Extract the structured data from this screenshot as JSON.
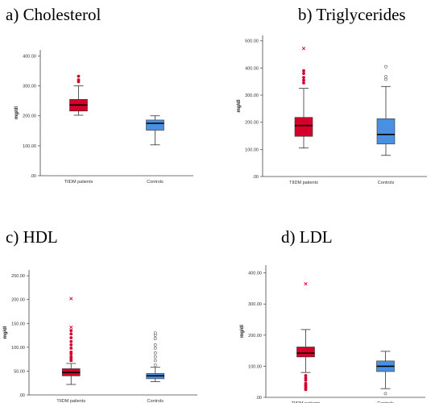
{
  "colors": {
    "patients": "#d4002a",
    "controls": "#4a90e2",
    "axis": "#444444",
    "median": "#000000"
  },
  "chart_data": [
    {
      "type": "box",
      "panel_label": "a) Cholesterol",
      "ylabel": "mg/dl",
      "ylim": [
        0,
        420
      ],
      "yticks": [
        0,
        100,
        200,
        300,
        400
      ],
      "ytick_labels": [
        ".00",
        "100.00",
        "200.00",
        "300.00",
        "400.00"
      ],
      "categories": [
        "TIIDM patients",
        "Controls"
      ],
      "boxes": [
        {
          "name": "TIIDM patients",
          "whisker_low": 202,
          "q1": 216,
          "median": 236,
          "q3": 255,
          "whisker_high": 300,
          "outliers": [
            314,
            320,
            332
          ],
          "extremes": []
        },
        {
          "name": "Controls",
          "whisker_low": 103,
          "q1": 152,
          "median": 175,
          "q3": 186,
          "whisker_high": 200,
          "outliers": [],
          "extremes": []
        }
      ]
    },
    {
      "type": "box",
      "panel_label": "b) Triglycerides",
      "ylabel": "mg/dl",
      "ylim": [
        0,
        520
      ],
      "yticks": [
        0,
        100,
        200,
        300,
        400,
        500
      ],
      "ytick_labels": [
        ".00",
        "100.00",
        "200.00",
        "300.00",
        "400.00",
        "500.00"
      ],
      "categories": [
        "TIIDM patients",
        "Controls"
      ],
      "boxes": [
        {
          "name": "TIIDM patients",
          "whisker_low": 105,
          "q1": 148,
          "median": 188,
          "q3": 218,
          "whisker_high": 325,
          "outliers": [
            345,
            355,
            365,
            380,
            390
          ],
          "extremes": [
            472
          ]
        },
        {
          "name": "Controls",
          "whisker_low": 78,
          "q1": 120,
          "median": 155,
          "q3": 213,
          "whisker_high": 332,
          "outliers": [
            358,
            368,
            405
          ],
          "extremes": []
        }
      ]
    },
    {
      "type": "box",
      "panel_label": "c) HDL",
      "ylabel": "mg/dl",
      "ylim": [
        0,
        262
      ],
      "yticks": [
        0,
        50,
        100,
        150,
        200,
        250
      ],
      "ytick_labels": [
        ".00",
        "50.00",
        "100.00",
        "150.00",
        "200.00",
        "250.00"
      ],
      "categories": [
        "TIIDM patients",
        "Controls"
      ],
      "boxes": [
        {
          "name": "TIIDM patients",
          "whisker_low": 22,
          "q1": 40,
          "median": 47,
          "q3": 55,
          "whisker_high": 66,
          "outliers": [
            72,
            76,
            80,
            86,
            90,
            98,
            105,
            112,
            120,
            128,
            135
          ],
          "extremes": [
            142,
            202
          ]
        },
        {
          "name": "Controls",
          "whisker_low": 28,
          "q1": 34,
          "median": 40,
          "q3": 45,
          "whisker_high": 58,
          "outliers": [
            63,
            72,
            80,
            88,
            98,
            105,
            118,
            125,
            130
          ],
          "extremes": []
        }
      ]
    },
    {
      "type": "box",
      "panel_label": "d) LDL",
      "ylabel": "mg/dl",
      "ylim": [
        0,
        425
      ],
      "yticks": [
        0,
        100,
        200,
        300,
        400
      ],
      "ytick_labels": [
        ".00",
        "100.00",
        "200.00",
        "300.00",
        "400.00"
      ],
      "categories": [
        "TIIDM patients",
        "Controls"
      ],
      "boxes": [
        {
          "name": "TIIDM patients",
          "whisker_low": 80,
          "q1": 130,
          "median": 142,
          "q3": 162,
          "whisker_high": 218,
          "outliers": [
            25,
            30,
            35,
            40,
            45,
            55,
            62,
            70
          ],
          "extremes": [
            365
          ]
        },
        {
          "name": "Controls",
          "whisker_low": 28,
          "q1": 83,
          "median": 100,
          "q3": 117,
          "whisker_high": 148,
          "outliers": [
            12
          ],
          "extremes": []
        }
      ]
    }
  ]
}
